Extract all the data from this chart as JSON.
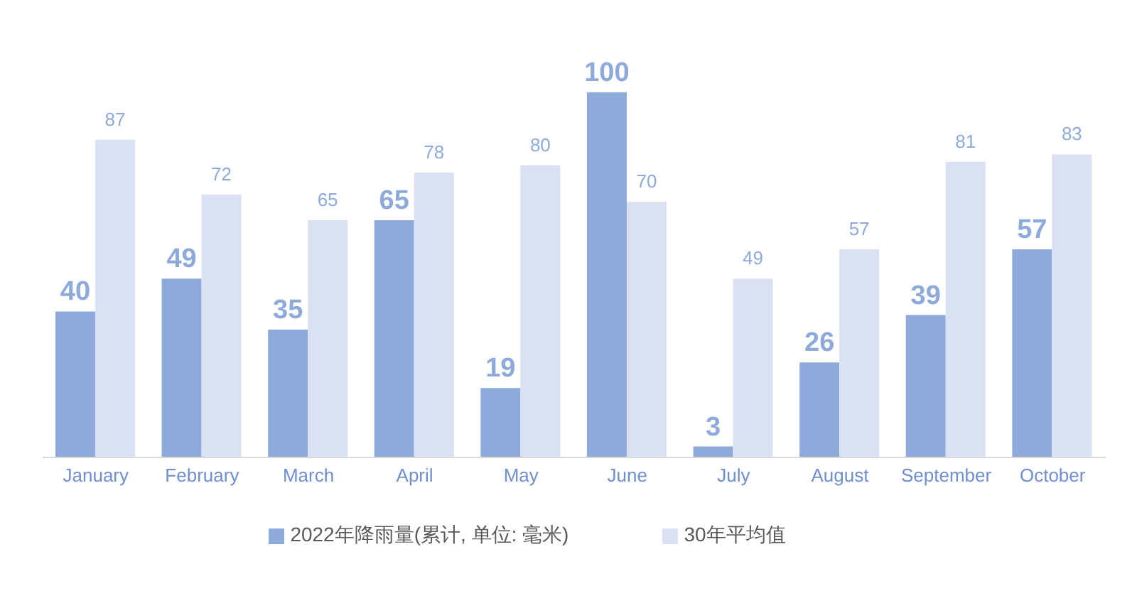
{
  "chart_data": {
    "type": "bar",
    "categories": [
      "January",
      "February",
      "March",
      "April",
      "May",
      "June",
      "July",
      "August",
      "September",
      "October"
    ],
    "series": [
      {
        "name": "2022年降雨量(累计, 单位: 毫米)",
        "color": "#8eaadb",
        "values": [
          40,
          49,
          35,
          65,
          19,
          100,
          3,
          26,
          39,
          57
        ]
      },
      {
        "name": "30年平均值",
        "color": "#d9e1f2",
        "values": [
          87,
          72,
          65,
          78,
          80,
          70,
          49,
          57,
          81,
          83
        ]
      }
    ],
    "data_labels": true,
    "legend": "bottom"
  }
}
